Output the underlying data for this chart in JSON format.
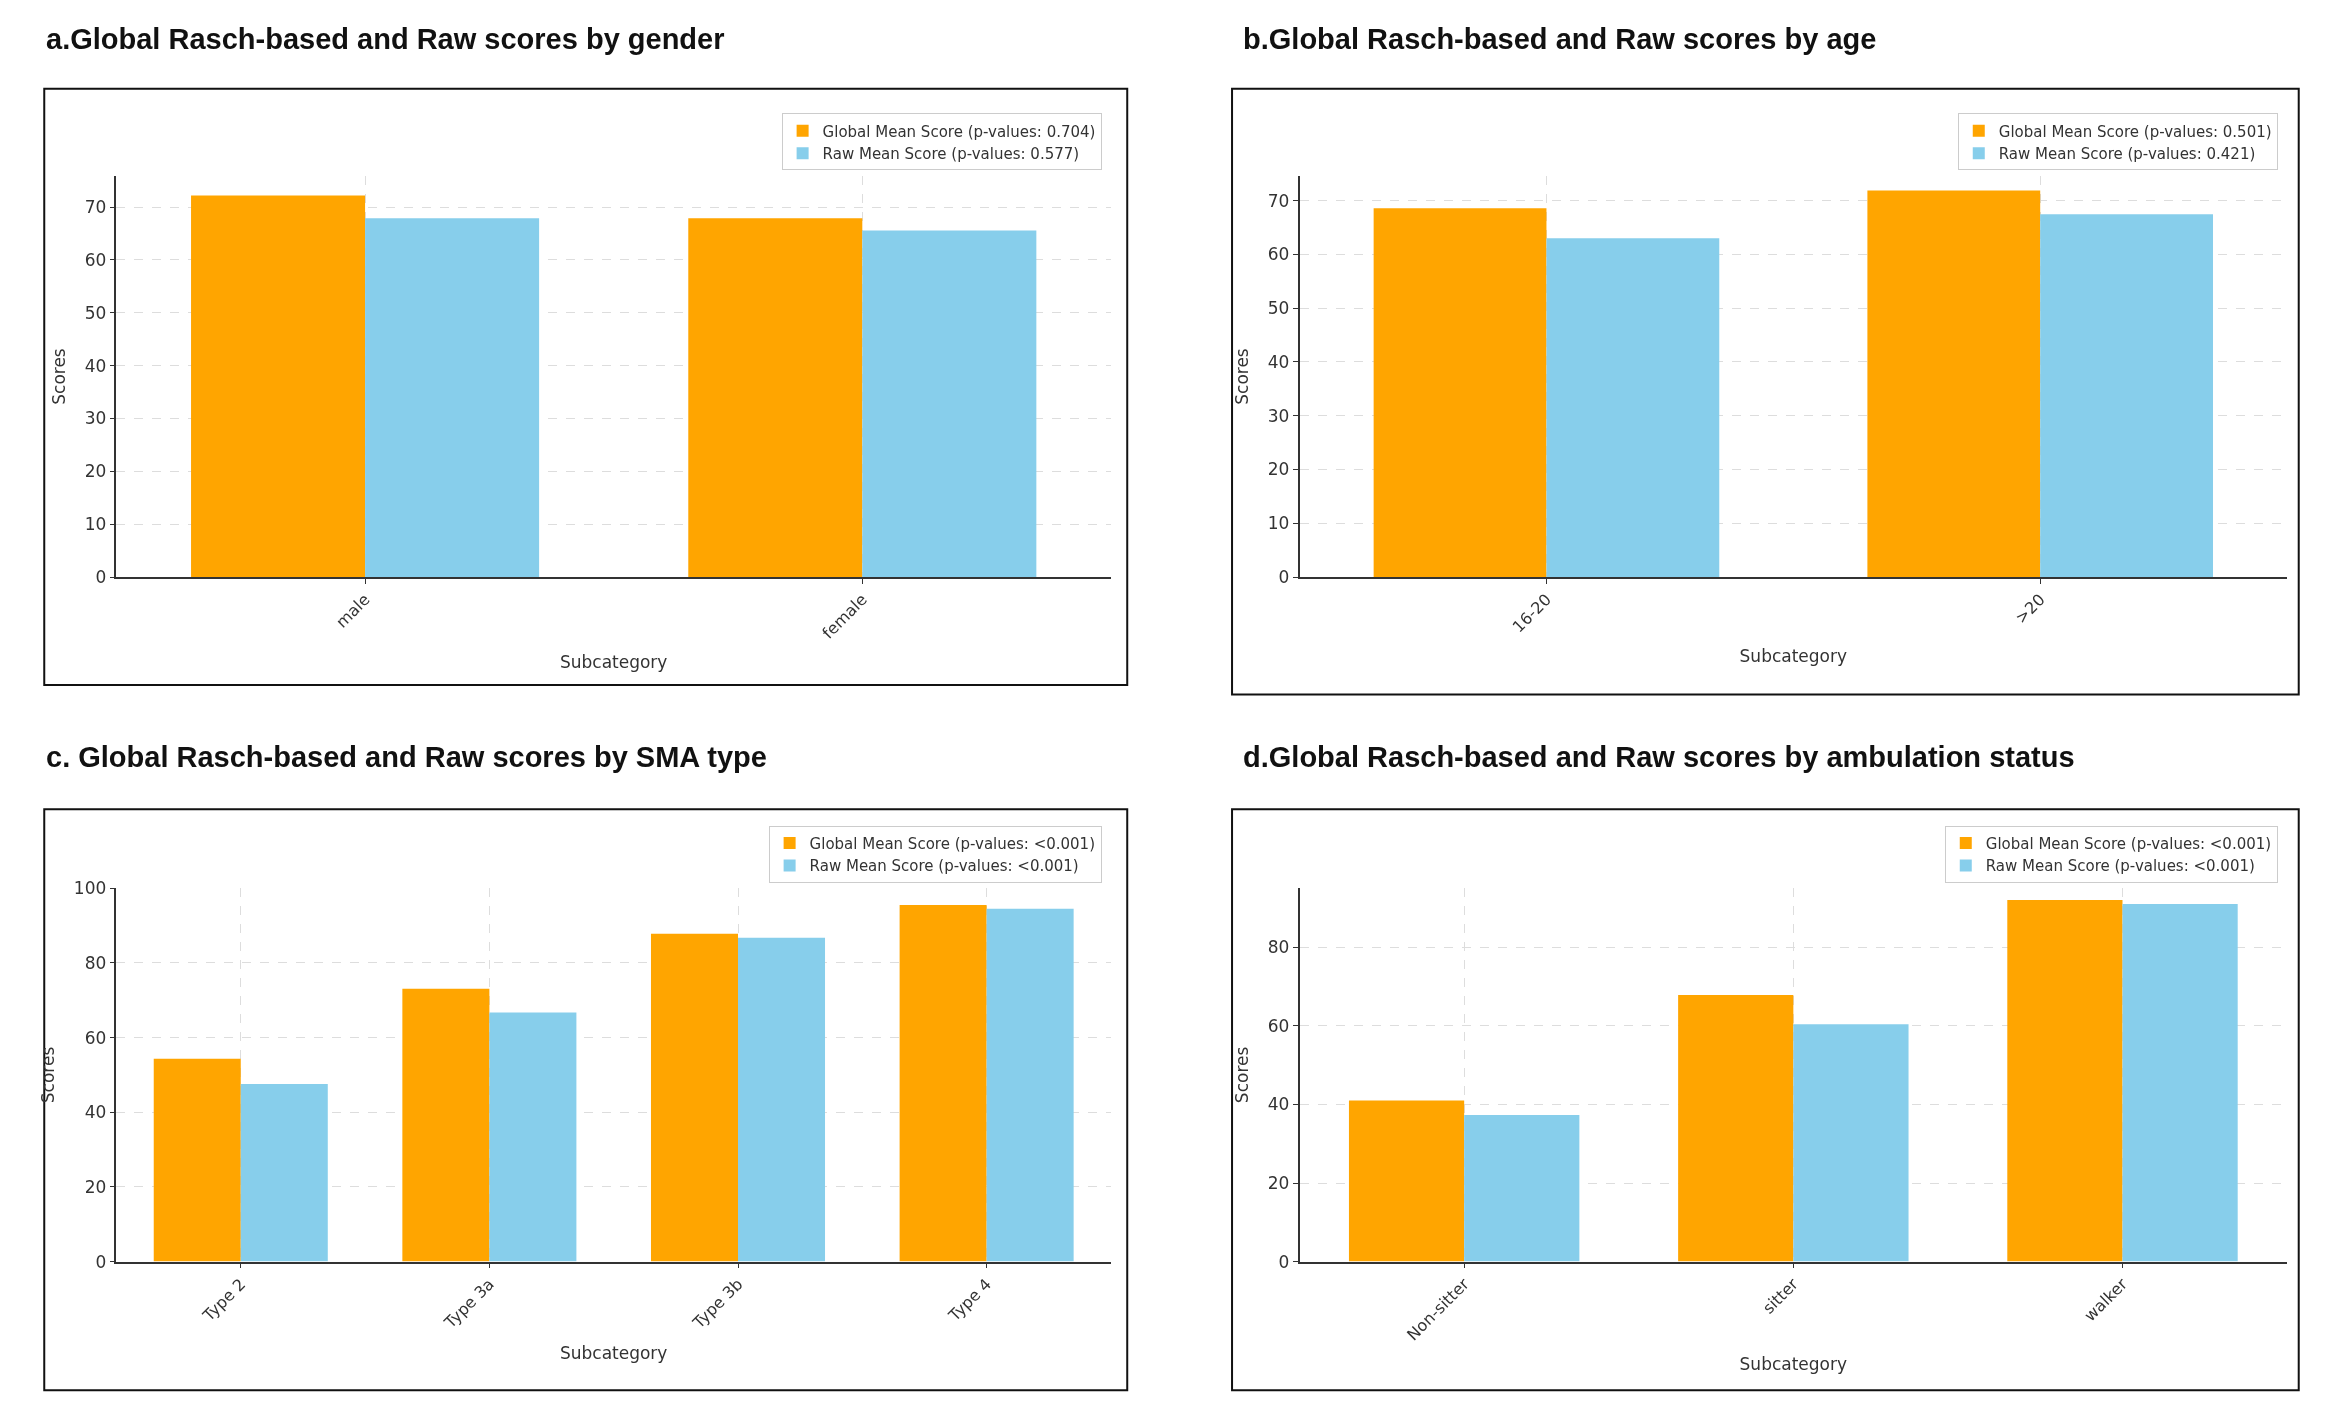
{
  "chart_data": [
    {
      "type": "bar",
      "title": "a.Global Rasch-based and Raw scores by gender",
      "xlabel": "Subcategory",
      "ylabel": "Scores",
      "categories": [
        "male",
        "female"
      ],
      "series": [
        {
          "name": "Global Mean Score (p-values: 0.704)",
          "color": "#ffa500",
          "values": [
            72.2,
            67.9
          ]
        },
        {
          "name": "Raw Mean Score (p-values: 0.577)",
          "color": "#87ceeb",
          "values": [
            67.9,
            65.6
          ]
        }
      ],
      "ylim": [
        0,
        75.9
      ],
      "yticks": [
        0,
        10,
        20,
        30,
        40,
        50,
        60,
        70
      ],
      "grid": true,
      "legend": "top right"
    },
    {
      "type": "bar",
      "title": "b.Global Rasch-based and Raw scores by age",
      "xlabel": "Subcategory",
      "ylabel": "Scores",
      "categories": [
        "16-20",
        ">20"
      ],
      "series": [
        {
          "name": "Global Mean Score (p-values: 0.501)",
          "color": "#ffa500",
          "values": [
            68.6,
            71.9
          ]
        },
        {
          "name": "Raw Mean Score (p-values: 0.421)",
          "color": "#87ceeb",
          "values": [
            63.0,
            67.5
          ]
        }
      ],
      "ylim": [
        0,
        74.6
      ],
      "yticks": [
        0,
        10,
        20,
        30,
        40,
        50,
        60,
        70
      ],
      "grid": true,
      "legend": "top right"
    },
    {
      "type": "bar",
      "title": "c. Global Rasch-based and Raw scores by SMA type",
      "xlabel": "Subcategory",
      "ylabel": "Scores",
      "categories": [
        "Type 2",
        "Type 3a",
        "Type 3b",
        "Type 4"
      ],
      "series": [
        {
          "name": "Global Mean Score (p-values: <0.001)",
          "color": "#ffa500",
          "values": [
            54.3,
            73.1,
            87.8,
            95.5
          ]
        },
        {
          "name": "Raw Mean Score (p-values: <0.001)",
          "color": "#87ceeb",
          "values": [
            47.6,
            66.7,
            86.7,
            94.5
          ]
        }
      ],
      "ylim": [
        0,
        100
      ],
      "yticks": [
        0,
        20,
        40,
        60,
        80,
        100
      ],
      "grid": true,
      "legend": "top right"
    },
    {
      "type": "bar",
      "title": "d.Global Rasch-based and Raw scores by ambulation status",
      "xlabel": "Subcategory",
      "ylabel": "Scores",
      "categories": [
        "Non-sitter",
        "sitter",
        "walker"
      ],
      "series": [
        {
          "name": "Global Mean Score (p-values: <0.001)",
          "color": "#ffa500",
          "values": [
            41.0,
            67.8,
            92.0
          ]
        },
        {
          "name": "Raw Mean Score (p-values: <0.001)",
          "color": "#87ceeb",
          "values": [
            37.3,
            60.4,
            91.0
          ]
        }
      ],
      "ylim": [
        0,
        95
      ],
      "yticks": [
        0,
        20,
        40,
        60,
        80
      ],
      "grid": true,
      "legend": "top right"
    }
  ]
}
